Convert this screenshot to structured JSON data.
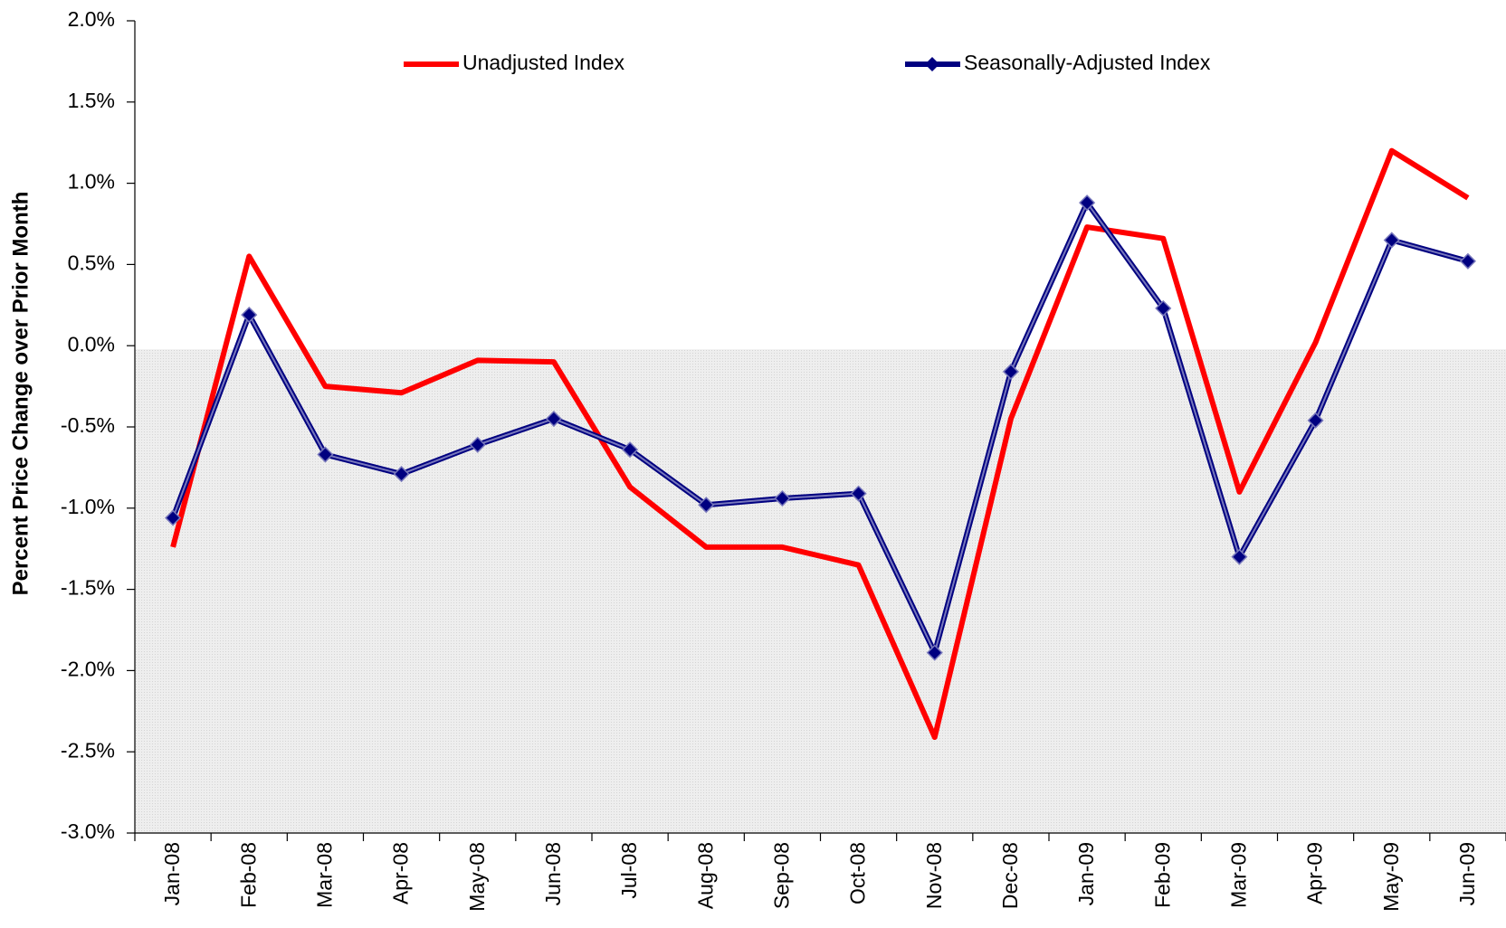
{
  "chart_data": {
    "type": "line",
    "ylabel": "Percent Price Change over Prior Month",
    "categories": [
      "Jan-08",
      "Feb-08",
      "Mar-08",
      "Apr-08",
      "May-08",
      "Jun-08",
      "Jul-08",
      "Aug-08",
      "Sep-08",
      "Oct-08",
      "Nov-08",
      "Dec-08",
      "Jan-09",
      "Feb-09",
      "Mar-09",
      "Apr-09",
      "May-09",
      "Jun-09"
    ],
    "series": [
      {
        "name": "Unadjusted Index",
        "color": "#ff0000",
        "marker": "none",
        "values": [
          -1.24,
          0.55,
          -0.25,
          -0.29,
          -0.09,
          -0.1,
          -0.87,
          -1.24,
          -1.24,
          -1.35,
          -2.41,
          -0.45,
          0.73,
          0.66,
          -0.9,
          0.02,
          1.2,
          0.91
        ]
      },
      {
        "name": "Seasonally-Adjusted Index",
        "color": "#000080",
        "marker": "diamond",
        "values": [
          -1.06,
          0.19,
          -0.67,
          -0.79,
          -0.61,
          -0.45,
          -0.64,
          -0.98,
          -0.94,
          -0.91,
          -1.89,
          -0.16,
          0.88,
          0.23,
          -1.3,
          -0.46,
          0.65,
          0.52
        ]
      }
    ],
    "ylim": [
      -3.0,
      2.0
    ],
    "yticks": [
      {
        "value": 2.0,
        "label": "2.0%"
      },
      {
        "value": 1.5,
        "label": "1.5%"
      },
      {
        "value": 1.0,
        "label": "1.0%"
      },
      {
        "value": 0.5,
        "label": "0.5%"
      },
      {
        "value": 0.0,
        "label": "0.0%"
      },
      {
        "value": -0.5,
        "label": "-0.5%"
      },
      {
        "value": -1.0,
        "label": "-1.0%"
      },
      {
        "value": -1.5,
        "label": "-1.5%"
      },
      {
        "value": -2.0,
        "label": "-2.0%"
      },
      {
        "value": -2.5,
        "label": "-2.5%"
      },
      {
        "value": -3.0,
        "label": "-3.0%"
      }
    ],
    "grid": false
  }
}
